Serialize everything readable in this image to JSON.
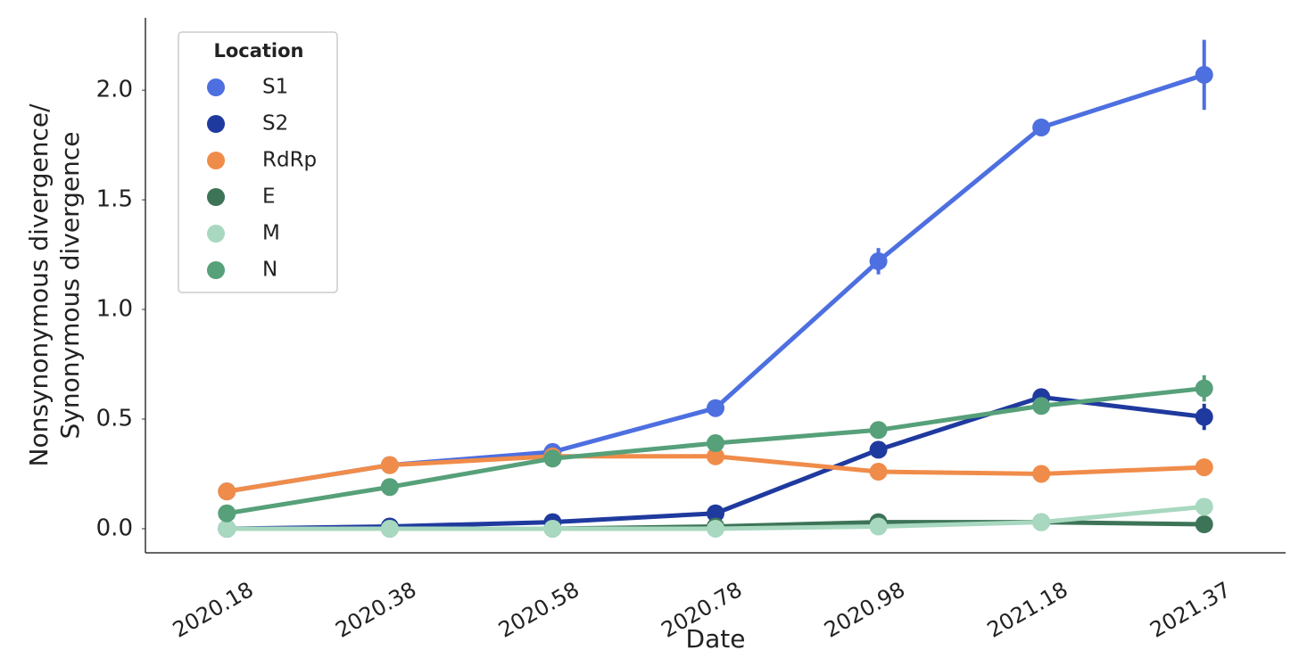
{
  "chart_data": {
    "type": "line",
    "x_label": "Date",
    "y_label": [
      "Nonsynonymous divergence/",
      "Synonymous divergence"
    ],
    "categories": [
      "2020.18",
      "2020.38",
      "2020.58",
      "2020.78",
      "2020.98",
      "2021.18",
      "2021.37"
    ],
    "series": [
      {
        "name": "S1",
        "color": "#4d6fe0",
        "values": [
          0.17,
          0.29,
          0.35,
          0.55,
          1.22,
          1.83,
          2.07
        ],
        "errors": [
          null,
          null,
          null,
          null,
          0.06,
          0.04,
          0.16
        ]
      },
      {
        "name": "S2",
        "color": "#1f3a9e",
        "values": [
          0.0,
          0.01,
          0.03,
          0.07,
          0.36,
          0.6,
          0.51
        ],
        "errors": [
          null,
          null,
          null,
          null,
          null,
          null,
          0.06
        ]
      },
      {
        "name": "RdRp",
        "color": "#f08c4a",
        "values": [
          0.17,
          0.29,
          0.33,
          0.33,
          0.26,
          0.25,
          0.28
        ],
        "errors": [
          null,
          null,
          null,
          null,
          null,
          null,
          null
        ]
      },
      {
        "name": "E",
        "color": "#3d7458",
        "values": [
          0.0,
          0.0,
          0.0,
          0.01,
          0.03,
          0.03,
          0.02
        ],
        "errors": [
          null,
          null,
          null,
          null,
          null,
          null,
          null
        ]
      },
      {
        "name": "M",
        "color": "#a8d8c0",
        "values": [
          0.0,
          0.0,
          0.0,
          0.0,
          0.01,
          0.03,
          0.1
        ],
        "errors": [
          null,
          null,
          null,
          null,
          null,
          null,
          null
        ]
      },
      {
        "name": "N",
        "color": "#56a07a",
        "values": [
          0.07,
          0.19,
          0.32,
          0.39,
          0.45,
          0.56,
          0.64
        ],
        "errors": [
          null,
          null,
          null,
          null,
          null,
          null,
          0.06
        ]
      }
    ],
    "ylim": [
      -0.11,
      2.33
    ],
    "yticks": [
      {
        "value": 0,
        "label": "0.0"
      },
      0.5,
      {
        "value": 1,
        "label": "1.0"
      },
      1.5,
      {
        "value": 2,
        "label": "2.0"
      }
    ],
    "legend": {
      "title": "Location",
      "position": "upper left"
    },
    "grid": false
  }
}
